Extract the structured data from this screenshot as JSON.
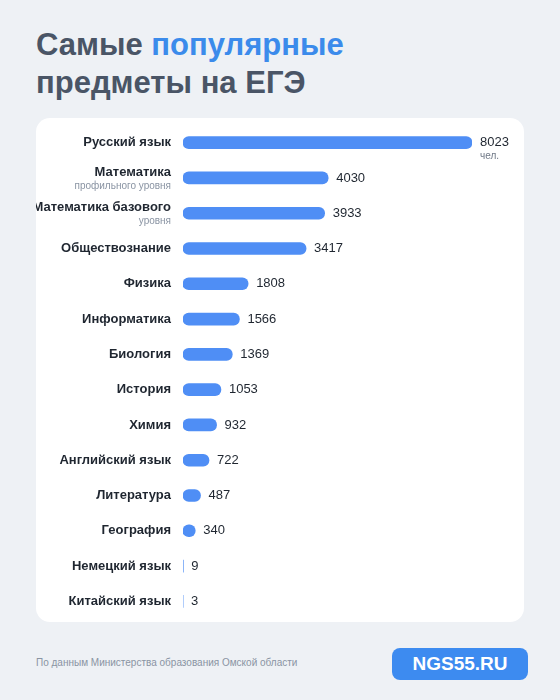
{
  "title": "Самые популярные предметы на ЕГЭ",
  "source": "По данным Министерства образования Омской области",
  "logo": "NGS55.RU",
  "chart_data": {
    "type": "bar",
    "orientation": "horizontal",
    "categories": [
      "Русский язык",
      "Математика профильного уровня",
      "Математика базового уровня",
      "Обществознание",
      "Физика",
      "Информатика",
      "Биология",
      "История",
      "Химия",
      "Английский язык",
      "Литература",
      "География",
      "Немецкий язык",
      "Китайский язык"
    ],
    "values": [
      8023,
      4030,
      3933,
      3417,
      1808,
      1566,
      1369,
      1053,
      932,
      722,
      487,
      340,
      9,
      3
    ],
    "unit_label": "чел.",
    "color": "#4f8ef5",
    "data_labels": true,
    "tick_labels": false,
    "grid": false
  }
}
